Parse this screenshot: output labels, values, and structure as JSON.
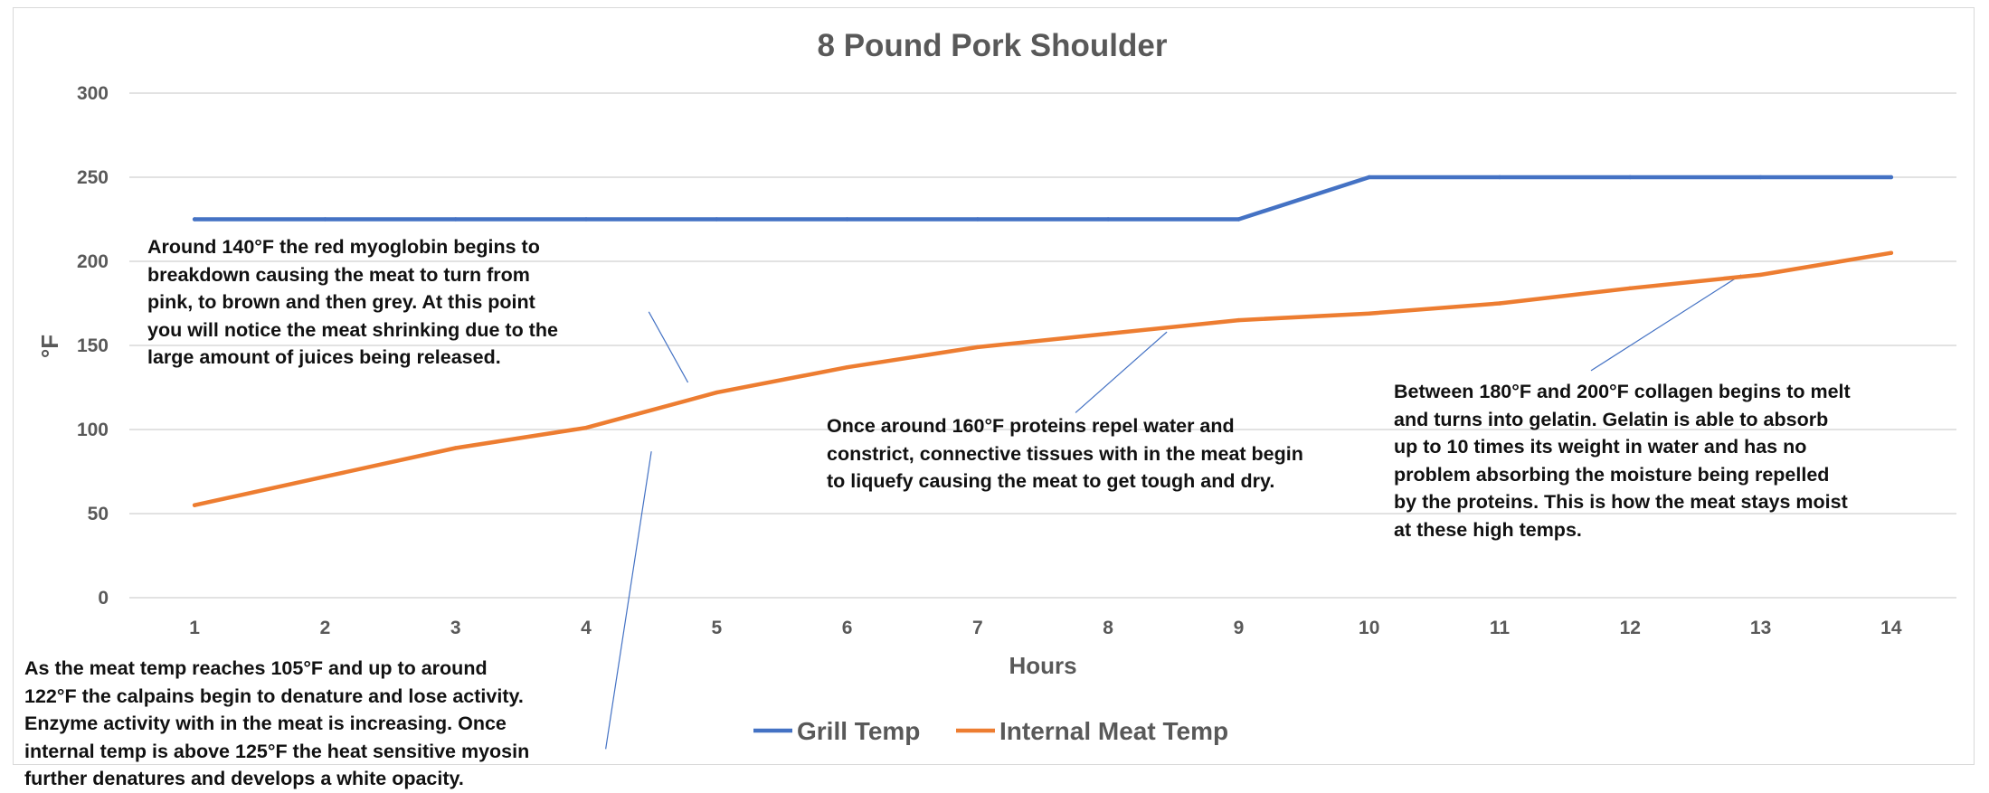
{
  "chart_data": {
    "type": "line",
    "title": "8 Pound Pork Shoulder",
    "xlabel": "Hours",
    "ylabel": "°F",
    "ylim": [
      0,
      300
    ],
    "yticks": [
      0,
      50,
      100,
      150,
      200,
      250,
      300
    ],
    "grid": true,
    "legend": "bottom",
    "categories": [
      "1",
      "2",
      "3",
      "4",
      "5",
      "6",
      "7",
      "8",
      "9",
      "10",
      "11",
      "12",
      "13",
      "14"
    ],
    "series": [
      {
        "name": "Grill Temp",
        "color": "#4472c4",
        "values": [
          225,
          225,
          225,
          225,
          225,
          225,
          225,
          225,
          225,
          250,
          250,
          250,
          250,
          250
        ]
      },
      {
        "name": "Internal Meat Temp",
        "color": "#ed7d31",
        "values": [
          55,
          72,
          89,
          101,
          122,
          137,
          149,
          157,
          165,
          169,
          175,
          184,
          192,
          205
        ]
      }
    ],
    "annotations": [
      {
        "id": "myoglobin",
        "text": "Around 140°F the red myoglobin begins to\nbreakdown causing the meat to turn from\npink, to brown and then grey. At this point\nyou will notice the meat shrinking due to the\nlarge amount of juices being released."
      },
      {
        "id": "proteins",
        "text": "Once around 160°F proteins repel water and\nconstrict, connective tissues with in the meat begin\nto liquefy causing the meat to get tough and dry."
      },
      {
        "id": "collagen",
        "text": "Between 180°F and 200°F collagen begins to melt\nand turns into gelatin. Gelatin is able to absorb\nup to 10 times its weight in water and has no\nproblem absorbing the moisture being repelled\nby the proteins. This is how the meat stays moist\nat these high temps."
      },
      {
        "id": "calpains",
        "text": "As the meat temp reaches 105°F and up to around\n122°F the calpains begin to denature and lose activity.\nEnzyme activity with in the meat is increasing. Once\ninternal temp is above 125°F the heat sensitive myosin\nfurther denatures and develops a white opacity."
      }
    ]
  }
}
